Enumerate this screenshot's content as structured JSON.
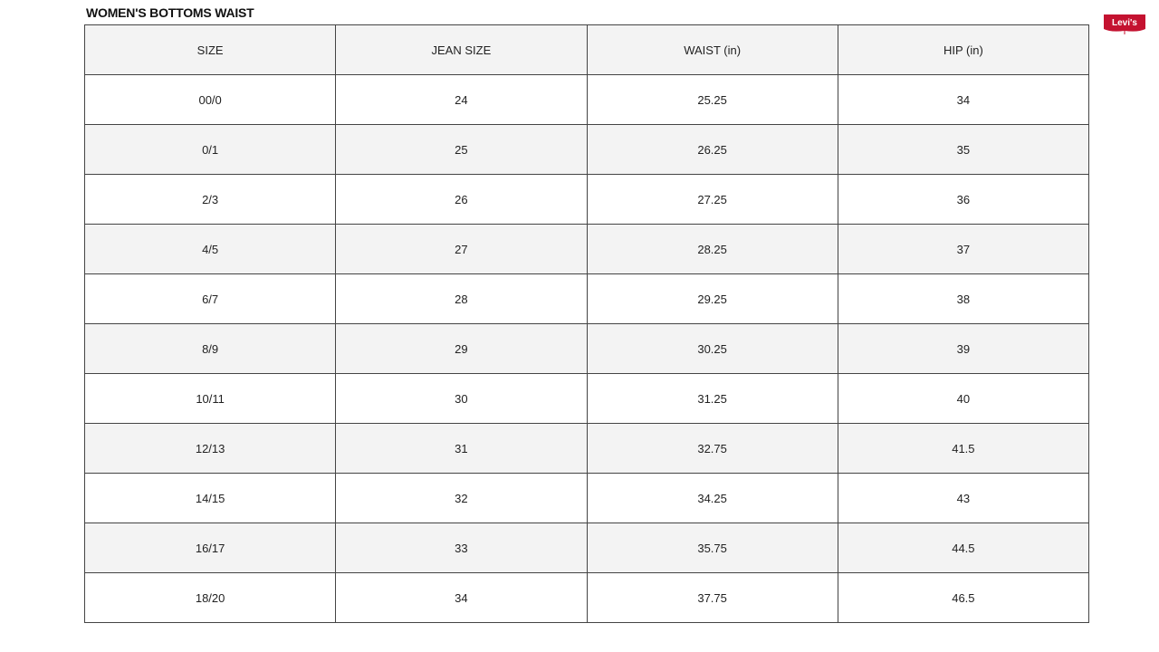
{
  "title": "WOMEN'S BOTTOMS WAIST",
  "logo": {
    "text": "Levi's",
    "color": "#c41230"
  },
  "table": {
    "headers": [
      "SIZE",
      "JEAN SIZE",
      "WAIST (in)",
      "HIP (in)"
    ],
    "rows": [
      [
        "00/0",
        "24",
        "25.25",
        "34"
      ],
      [
        "0/1",
        "25",
        "26.25",
        "35"
      ],
      [
        "2/3",
        "26",
        "27.25",
        "36"
      ],
      [
        "4/5",
        "27",
        "28.25",
        "37"
      ],
      [
        "6/7",
        "28",
        "29.25",
        "38"
      ],
      [
        "8/9",
        "29",
        "30.25",
        "39"
      ],
      [
        "10/11",
        "30",
        "31.25",
        "40"
      ],
      [
        "12/13",
        "31",
        "32.75",
        "41.5"
      ],
      [
        "14/15",
        "32",
        "34.25",
        "43"
      ],
      [
        "16/17",
        "33",
        "35.75",
        "44.5"
      ],
      [
        "18/20",
        "34",
        "37.75",
        "46.5"
      ]
    ]
  }
}
